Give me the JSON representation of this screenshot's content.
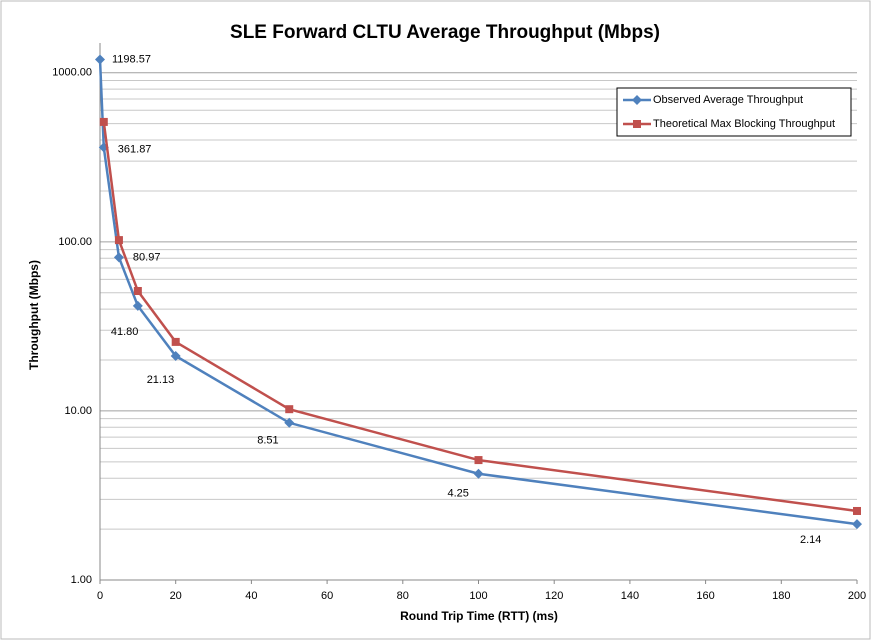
{
  "chart_data": {
    "type": "line",
    "title": "SLE Forward CLTU Average Throughput (Mbps)",
    "x_label": "Round Trip Time (RTT) (ms)",
    "y_label": "Throughput (Mbps)",
    "series": [
      {
        "name": "Observed Average Throughput",
        "color": "#4f81bd",
        "marker": "diamond",
        "x": [
          0,
          1,
          5,
          10,
          20,
          50,
          100,
          200
        ],
        "values": [
          1198.57,
          361.87,
          80.97,
          41.8,
          21.13,
          8.51,
          4.25,
          2.14
        ],
        "value_labels": [
          "1198.57",
          "361.87",
          "80.97",
          "41.80",
          "21.13",
          "8.51",
          "4.25",
          "2.14"
        ]
      },
      {
        "name": "Theoretical Max Blocking Throughput",
        "color": "#c0504d",
        "marker": "square",
        "x": [
          1,
          5,
          10,
          20,
          50,
          100,
          200
        ],
        "values": [
          512,
          102.4,
          51.2,
          25.6,
          10.24,
          5.12,
          2.56
        ]
      }
    ],
    "xlim": [
      0,
      200
    ],
    "xticks": [
      0,
      20,
      40,
      60,
      80,
      100,
      120,
      140,
      160,
      180,
      200
    ],
    "ylim": [
      1,
      1500
    ],
    "log_y": true,
    "minor_grid": true,
    "grid": true,
    "legend": "upper right",
    "yticks": [
      {
        "value": 1,
        "label": "1.00"
      },
      {
        "value": 10,
        "label": "10.00"
      },
      {
        "value": 100,
        "label": "100.00"
      },
      {
        "value": 1000,
        "label": "1000.00"
      }
    ]
  }
}
